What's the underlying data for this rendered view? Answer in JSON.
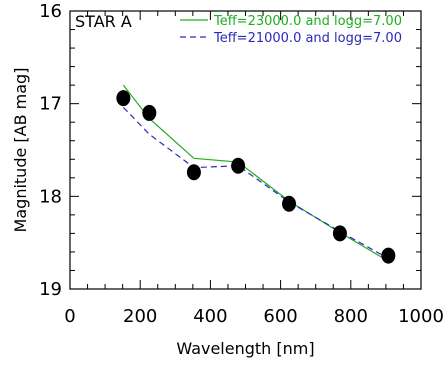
{
  "chart_data": {
    "type": "line",
    "title": "",
    "annotation": "STAR A",
    "xlabel": "Wavelength [nm]",
    "ylabel": "Magnitude [AB mag]",
    "xlim": [
      0,
      1000
    ],
    "ylim": [
      16,
      19
    ],
    "y_inverted": true,
    "x_ticks": [
      0,
      200,
      400,
      600,
      800,
      1000
    ],
    "y_ticks": [
      16,
      17,
      18,
      19
    ],
    "grid": false,
    "legend_position": "top-right",
    "observed": {
      "marker": "filled-circle",
      "color": "#000000",
      "x": [
        152,
        226,
        353,
        479,
        624,
        769,
        907
      ],
      "y": [
        16.94,
        17.1,
        17.74,
        17.67,
        18.08,
        18.4,
        18.64
      ]
    },
    "series": [
      {
        "name": "Teff=23000.0 and logg=7.00",
        "color": "#1fae1f",
        "dash": "solid",
        "x": [
          152,
          226,
          353,
          479,
          624,
          769,
          907
        ],
        "y": [
          16.8,
          17.16,
          17.59,
          17.63,
          18.05,
          18.39,
          18.7
        ]
      },
      {
        "name": "Teff=21000.0 and logg=7.00",
        "color": "#2a2ab8",
        "dash": "dashed",
        "x": [
          152,
          226,
          353,
          479,
          624,
          769,
          907
        ],
        "y": [
          17.04,
          17.33,
          17.69,
          17.67,
          18.06,
          18.38,
          18.67
        ]
      }
    ]
  }
}
